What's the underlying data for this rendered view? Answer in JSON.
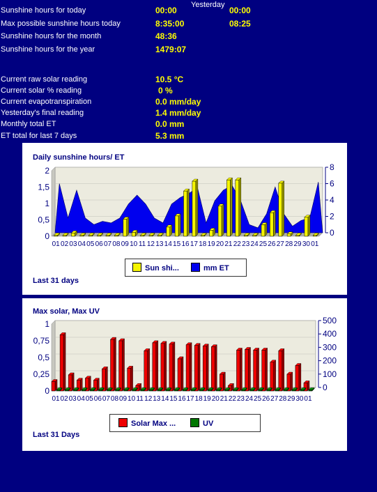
{
  "stats": {
    "yesterday_label": "Yesterday",
    "rows": [
      {
        "label": "Sunshine hours for today",
        "value": "00:00",
        "yesterday": "00:00"
      },
      {
        "label": "Max possible sunshine hours today",
        "value": "8:35:00",
        "yesterday": "08:25"
      },
      {
        "label": "Sunshine hours for the month",
        "value": "48:36",
        "yesterday": ""
      },
      {
        "label": "Sunshine hours for the year",
        "value": "1479:07",
        "yesterday": ""
      }
    ],
    "rows2": [
      {
        "label": "Current raw solar reading",
        "value": "10.5 °C"
      },
      {
        "label": "Current solar % reading",
        "value": "0 %"
      },
      {
        "label": "Current evapotranspiration",
        "value": "0.0 mm/day"
      },
      {
        "label": "Yesterday's final reading",
        "value": "1.4 mm/day"
      },
      {
        "label": "Monthly total ET",
        "value": "0.0 mm"
      },
      {
        "label": "ET total for last 7 days",
        "value": "5.3 mm"
      }
    ]
  },
  "chart_data": [
    {
      "type": "bar",
      "title": "Daily sunshine hours/ ET",
      "footer": "Last 31 days",
      "categories": [
        "01",
        "02",
        "03",
        "04",
        "05",
        "06",
        "07",
        "08",
        "09",
        "10",
        "11",
        "12",
        "13",
        "14",
        "15",
        "16",
        "17",
        "18",
        "19",
        "20",
        "21",
        "22",
        "23",
        "24",
        "25",
        "26",
        "27",
        "28",
        "29",
        "30",
        "01"
      ],
      "left_axis": {
        "ticks": [
          "0",
          "0,5",
          "1",
          "1,5",
          "2"
        ],
        "min": 0,
        "max": 2
      },
      "right_axis": {
        "ticks": [
          "0",
          "2",
          "4",
          "6",
          "8"
        ],
        "min": 0,
        "max": 8
      },
      "series": [
        {
          "name": "Sun shi...",
          "kind": "bar",
          "axis": "left",
          "color": "#f5f500",
          "values": [
            0,
            0,
            0.1,
            0,
            0,
            0,
            0,
            0,
            0.52,
            0.12,
            0,
            0,
            0,
            0.28,
            0.62,
            1.38,
            1.68,
            0,
            0.18,
            0.92,
            1.72,
            1.72,
            0,
            0,
            0.35,
            0.72,
            1.62,
            0.07,
            0,
            0.58,
            0
          ]
        },
        {
          "name": "mm ET",
          "kind": "area",
          "axis": "right",
          "color": "#0000ee",
          "values": [
            6.0,
            1.8,
            5.2,
            1.8,
            1.0,
            1.4,
            1.2,
            1.8,
            3.5,
            4.6,
            3.5,
            1.8,
            1.2,
            3.5,
            4.3,
            4.8,
            5.5,
            1.2,
            3.9,
            5.2,
            5.8,
            3.9,
            1.0,
            0.6,
            2.3,
            5.6,
            2.3,
            0.8,
            1.5,
            1.8,
            6.2
          ]
        }
      ]
    },
    {
      "type": "bar",
      "title": "Max solar, Max UV",
      "footer": "Last 31 Days",
      "categories": [
        "01",
        "02",
        "03",
        "04",
        "05",
        "06",
        "07",
        "08",
        "09",
        "10",
        "11",
        "12",
        "13",
        "14",
        "15",
        "16",
        "17",
        "18",
        "19",
        "20",
        "21",
        "22",
        "23",
        "24",
        "25",
        "26",
        "27",
        "28",
        "29",
        "30",
        "01"
      ],
      "left_axis": {
        "ticks": [
          "0",
          "0,25",
          "0,5",
          "0,75",
          "1"
        ],
        "min": 0,
        "max": 1
      },
      "right_axis": {
        "ticks": [
          "0",
          "100",
          "200",
          "300",
          "400",
          "500"
        ],
        "min": 0,
        "max": 500
      },
      "series": [
        {
          "name": "Solar Max ...",
          "kind": "bar",
          "axis": "right",
          "color": "#ee0000",
          "values": [
            70,
            420,
            120,
            80,
            95,
            80,
            165,
            385,
            375,
            170,
            40,
            300,
            360,
            355,
            350,
            240,
            345,
            340,
            335,
            330,
            125,
            40,
            305,
            310,
            305,
            305,
            215,
            300,
            125,
            190,
            60
          ]
        },
        {
          "name": "UV",
          "kind": "bar",
          "axis": "left",
          "color": "#007700",
          "values": [
            0,
            0,
            0,
            0,
            0,
            0,
            0,
            0,
            0,
            0,
            0,
            0,
            0,
            0,
            0,
            0,
            0,
            0,
            0,
            0,
            0,
            0,
            0,
            0,
            0,
            0,
            0,
            0,
            0,
            0,
            0
          ]
        }
      ]
    }
  ]
}
